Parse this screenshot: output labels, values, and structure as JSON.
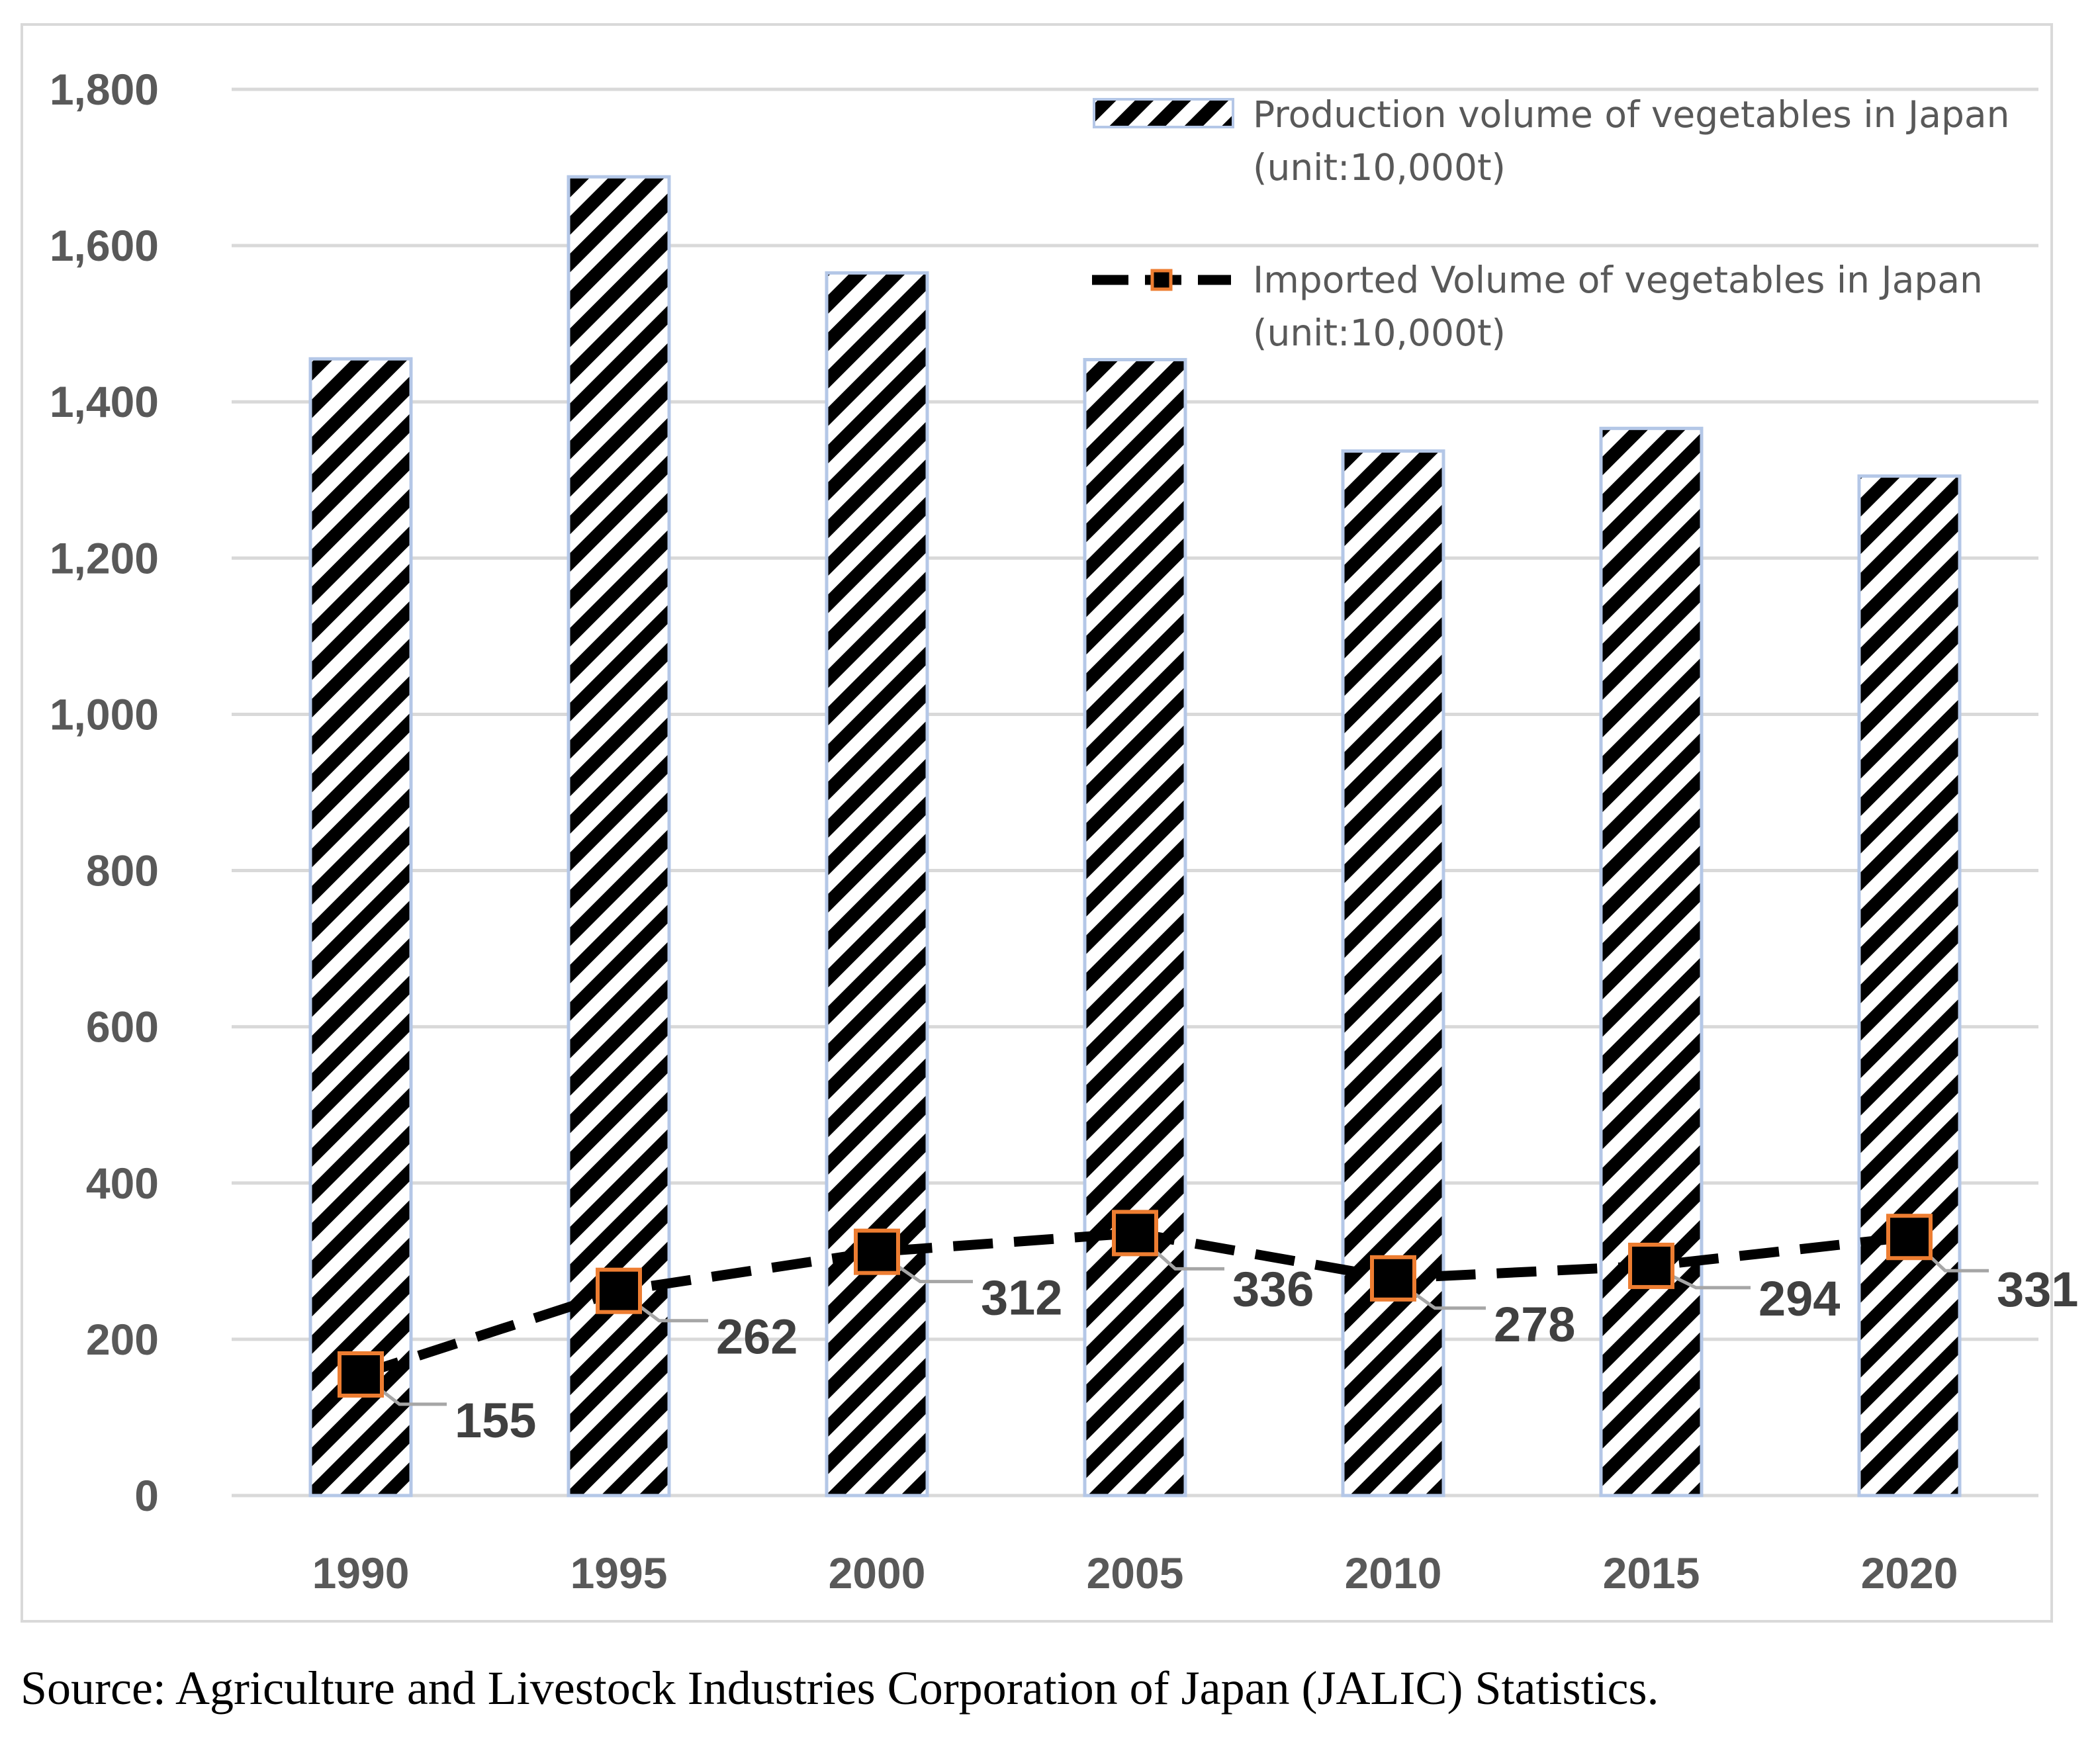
{
  "chart_data": {
    "type": "bar",
    "categories": [
      "1990",
      "1995",
      "2000",
      "2005",
      "2010",
      "2015",
      "2020"
    ],
    "series": [
      {
        "name": "Production volume of vegetables in Japan (unit:10,000t)",
        "legend_lines": [
          "Production volume of vegetables in Japan",
          "(unit:10,000t)"
        ],
        "type": "bar",
        "values": [
          1455,
          1688,
          1565,
          1454,
          1337,
          1366,
          1305
        ]
      },
      {
        "name": "Imported Volume of vegetables in Japan (unit:10,000t)",
        "legend_lines": [
          "Imported Volume of vegetables in Japan",
          "(unit:10,000t)"
        ],
        "type": "line",
        "values": [
          155,
          262,
          312,
          336,
          278,
          294,
          331
        ],
        "data_labels": [
          "155",
          "262",
          "312",
          "336",
          "278",
          "294",
          "331"
        ]
      }
    ],
    "yticks": [
      "0",
      "200",
      "400",
      "600",
      "800",
      "1,000",
      "1,200",
      "1,400",
      "1,600",
      "1,800"
    ],
    "ylim": [
      0,
      1800
    ],
    "grid": true,
    "legend_position": "top-right",
    "colors": {
      "bar_stripe": "#000000",
      "bar_outline": "#b4c7e7",
      "line": "#000000",
      "marker_fill": "#000000",
      "marker_edge": "#ed7d31",
      "leader": "#a6a6a6",
      "gridline": "#d9d9d9"
    }
  },
  "source": "Source: Agriculture and Livestock Industries Corporation of Japan (JALIC) Statistics."
}
